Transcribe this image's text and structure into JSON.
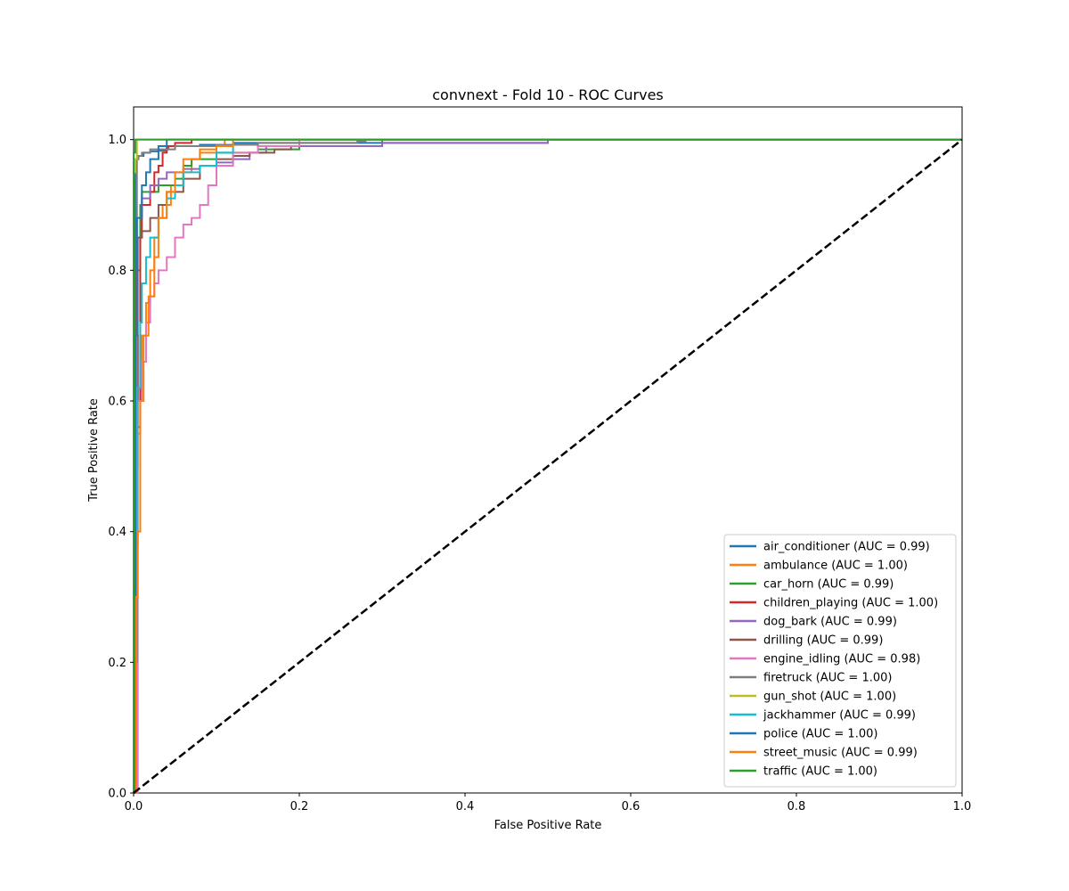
{
  "chart_data": {
    "type": "line",
    "title": "convnext - Fold 10 - ROC Curves",
    "xlabel": "False Positive Rate",
    "ylabel": "True Positive Rate",
    "xlim": [
      0.0,
      1.0
    ],
    "ylim": [
      0.0,
      1.05
    ],
    "xticks": [
      "0.0",
      "0.2",
      "0.4",
      "0.6",
      "0.8",
      "1.0"
    ],
    "yticks": [
      "0.0",
      "0.2",
      "0.4",
      "0.6",
      "0.8",
      "1.0"
    ],
    "grid": false,
    "legend_position": "lower-right",
    "diagonal": {
      "x": [
        0,
        1
      ],
      "y": [
        0,
        1
      ],
      "color": "#000000",
      "style": "dashed"
    },
    "series": [
      {
        "name": "air_conditioner (AUC = 0.99)",
        "color": "#1f77b4",
        "x": [
          0,
          0.002,
          0.002,
          0.005,
          0.012,
          0.012,
          0.018,
          0.02,
          0.03,
          0.04,
          0.042,
          0.08,
          0.12,
          0.5,
          1.0
        ],
        "y": [
          0,
          0.06,
          0.97,
          0.975,
          0.975,
          0.98,
          0.98,
          0.982,
          0.983,
          0.985,
          0.99,
          0.992,
          0.995,
          1.0,
          1.0
        ]
      },
      {
        "name": "ambulance (AUC = 1.00)",
        "color": "#ff7f0e",
        "x": [
          0,
          0.002,
          0.003,
          0.005,
          0.008,
          0.01,
          0.015,
          0.02,
          0.025,
          0.03,
          0.035,
          0.045,
          0.06,
          0.07,
          0.08,
          0.1,
          0.11,
          1.0
        ],
        "y": [
          0,
          0.35,
          0.38,
          0.55,
          0.62,
          0.7,
          0.75,
          0.8,
          0.85,
          0.88,
          0.9,
          0.93,
          0.95,
          0.97,
          0.98,
          0.99,
          1.0,
          1.0
        ]
      },
      {
        "name": "car_horn (AUC = 0.99)",
        "color": "#2ca02c",
        "x": [
          0,
          0.003,
          0.005,
          0.008,
          0.01,
          0.02,
          0.03,
          0.05,
          0.06,
          0.07,
          0.1,
          0.15,
          0.2,
          0.3,
          1.0
        ],
        "y": [
          0,
          0.5,
          0.8,
          0.9,
          0.92,
          0.92,
          0.93,
          0.94,
          0.96,
          0.97,
          0.98,
          0.985,
          0.99,
          1.0,
          1.0
        ]
      },
      {
        "name": "children_playing (AUC = 1.00)",
        "color": "#d62728",
        "x": [
          0,
          0.002,
          0.005,
          0.008,
          0.01,
          0.02,
          0.025,
          0.03,
          0.035,
          0.04,
          0.05,
          0.07,
          1.0
        ],
        "y": [
          0,
          0.7,
          0.56,
          0.85,
          0.9,
          0.92,
          0.95,
          0.96,
          0.98,
          0.99,
          0.995,
          1.0,
          1.0
        ]
      },
      {
        "name": "dog_bark (AUC = 0.99)",
        "color": "#9467bd",
        "x": [
          0,
          0.002,
          0.004,
          0.01,
          0.02,
          0.03,
          0.04,
          0.06,
          0.08,
          0.1,
          0.12,
          0.14,
          0.16,
          0.3,
          0.49,
          0.5,
          1.0
        ],
        "y": [
          0,
          0.72,
          0.88,
          0.91,
          0.93,
          0.94,
          0.95,
          0.955,
          0.96,
          0.965,
          0.97,
          0.98,
          0.99,
          0.995,
          0.995,
          1.0,
          1.0
        ]
      },
      {
        "name": "drilling (AUC = 0.99)",
        "color": "#8c564b",
        "x": [
          0,
          0.002,
          0.005,
          0.01,
          0.02,
          0.03,
          0.04,
          0.06,
          0.08,
          0.1,
          0.12,
          0.14,
          0.17,
          0.19,
          0.2,
          1.0
        ],
        "y": [
          0,
          0.8,
          0.85,
          0.86,
          0.88,
          0.9,
          0.92,
          0.94,
          0.96,
          0.97,
          0.975,
          0.98,
          0.985,
          0.99,
          1.0,
          1.0
        ]
      },
      {
        "name": "engine_idling (AUC = 0.98)",
        "color": "#e377c2",
        "x": [
          0,
          0.005,
          0.01,
          0.015,
          0.02,
          0.025,
          0.03,
          0.04,
          0.05,
          0.06,
          0.07,
          0.08,
          0.09,
          0.1,
          0.12,
          0.15,
          0.2,
          1.0
        ],
        "y": [
          0,
          0.6,
          0.66,
          0.72,
          0.76,
          0.78,
          0.8,
          0.82,
          0.85,
          0.87,
          0.88,
          0.9,
          0.93,
          0.96,
          0.98,
          0.99,
          1.0,
          1.0
        ]
      },
      {
        "name": "firetruck (AUC = 1.00)",
        "color": "#7f7f7f",
        "x": [
          0,
          0.003,
          0.004,
          0.006,
          0.01,
          0.02,
          0.05,
          0.1,
          0.15,
          0.2,
          0.27,
          0.28,
          1.0
        ],
        "y": [
          0,
          0.2,
          0.97,
          0.975,
          0.98,
          0.985,
          0.99,
          0.992,
          0.995,
          0.995,
          0.997,
          1.0,
          1.0
        ]
      },
      {
        "name": "gun_shot (AUC = 1.00)",
        "color": "#bcbd22",
        "x": [
          0,
          0.0,
          0.002,
          0.004,
          1.0
        ],
        "y": [
          0,
          0.95,
          0.97,
          1.0,
          1.0
        ]
      },
      {
        "name": "jackhammer (AUC = 0.99)",
        "color": "#17becf",
        "x": [
          0,
          0.002,
          0.004,
          0.008,
          0.01,
          0.015,
          0.02,
          0.03,
          0.04,
          0.05,
          0.06,
          0.08,
          0.1,
          0.12,
          1.0
        ],
        "y": [
          0,
          0.4,
          0.62,
          0.72,
          0.78,
          0.82,
          0.85,
          0.88,
          0.91,
          0.93,
          0.95,
          0.96,
          0.98,
          1.0,
          1.0
        ]
      },
      {
        "name": "police (AUC = 1.00)",
        "color": "#1f77b4",
        "x": [
          0,
          0.002,
          0.004,
          0.01,
          0.015,
          0.02,
          0.03,
          0.04,
          1.0
        ],
        "y": [
          0,
          0.7,
          0.88,
          0.93,
          0.95,
          0.97,
          0.99,
          1.0,
          1.0
        ]
      },
      {
        "name": "street_music (AUC = 0.99)",
        "color": "#ff7f0e",
        "x": [
          0,
          0.003,
          0.005,
          0.008,
          0.012,
          0.018,
          0.025,
          0.03,
          0.04,
          0.05,
          0.06,
          0.08,
          0.1,
          0.12,
          1.0
        ],
        "y": [
          0,
          0.3,
          0.4,
          0.6,
          0.7,
          0.76,
          0.82,
          0.88,
          0.92,
          0.95,
          0.97,
          0.985,
          0.99,
          1.0,
          1.0
        ]
      },
      {
        "name": "traffic (AUC = 1.00)",
        "color": "#2ca02c",
        "x": [
          0,
          0.0,
          0.002,
          1.0
        ],
        "y": [
          0,
          0.98,
          1.0,
          1.0
        ]
      }
    ]
  }
}
